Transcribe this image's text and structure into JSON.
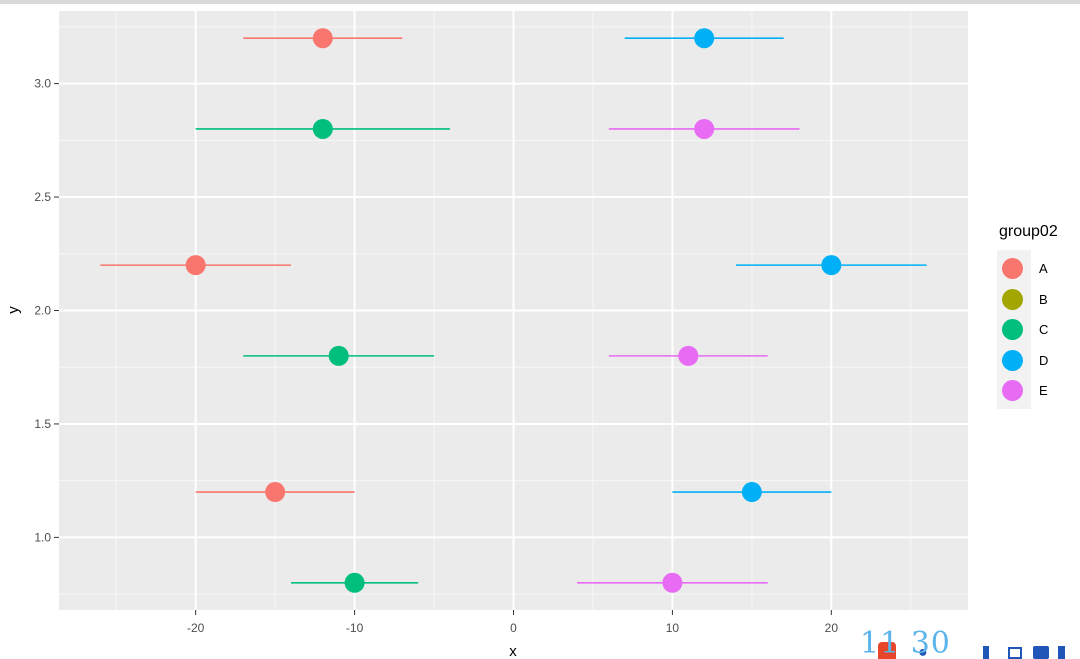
{
  "chart_data": {
    "type": "scatter",
    "subtype": "point-range",
    "xlabel": "x",
    "ylabel": "y",
    "xlim": [
      -28.6,
      28.6
    ],
    "ylim": [
      0.68,
      3.32
    ],
    "x_ticks": [
      -20,
      -10,
      0,
      10,
      20
    ],
    "y_ticks": [
      1.0,
      1.5,
      2.0,
      2.5,
      3.0
    ],
    "x_tick_labels": [
      "-20",
      "-10",
      "0",
      "10",
      "20"
    ],
    "y_tick_labels": [
      "1.0",
      "1.5",
      "2.0",
      "2.5",
      "3.0"
    ],
    "grid": true,
    "panel_background": "#ebebeb",
    "legend": {
      "title": "group02",
      "position": "right",
      "entries": [
        {
          "label": "A",
          "color": "#F8766D"
        },
        {
          "label": "B",
          "color": "#A3A500"
        },
        {
          "label": "C",
          "color": "#00BF7D"
        },
        {
          "label": "D",
          "color": "#00B0F6"
        },
        {
          "label": "E",
          "color": "#E76BF3"
        }
      ]
    },
    "points": [
      {
        "group": "A",
        "x": -12,
        "y": 3.2,
        "xmin": -17,
        "xmax": -7
      },
      {
        "group": "D",
        "x": 12,
        "y": 3.2,
        "xmin": 7,
        "xmax": 17
      },
      {
        "group": "C",
        "x": -12,
        "y": 2.8,
        "xmin": -20,
        "xmax": -4
      },
      {
        "group": "E",
        "x": 12,
        "y": 2.8,
        "xmin": 6,
        "xmax": 18
      },
      {
        "group": "A",
        "x": -20,
        "y": 2.2,
        "xmin": -26,
        "xmax": -14
      },
      {
        "group": "D",
        "x": 20,
        "y": 2.2,
        "xmin": 14,
        "xmax": 26
      },
      {
        "group": "C",
        "x": -11,
        "y": 1.8,
        "xmin": -17,
        "xmax": -5
      },
      {
        "group": "E",
        "x": 11,
        "y": 1.8,
        "xmin": 6,
        "xmax": 16
      },
      {
        "group": "A",
        "x": -15,
        "y": 1.2,
        "xmin": -20,
        "xmax": -10
      },
      {
        "group": "D",
        "x": 15,
        "y": 1.2,
        "xmin": 10,
        "xmax": 20
      },
      {
        "group": "C",
        "x": -10,
        "y": 0.8,
        "xmin": -14,
        "xmax": -6
      },
      {
        "group": "E",
        "x": 10,
        "y": 0.8,
        "xmin": 4,
        "xmax": 16
      }
    ]
  },
  "watermark": {
    "text": "11 30"
  }
}
